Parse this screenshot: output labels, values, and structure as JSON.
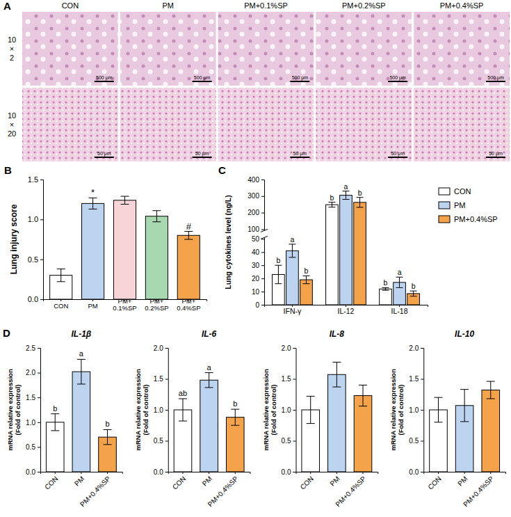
{
  "chart_data": [
    {
      "type": "image_grid",
      "panel": "A",
      "columns": [
        "CON",
        "PM",
        "PM+0.1%SP",
        "PM+0.2%SP",
        "PM+0.4%SP"
      ],
      "rows": [
        "10 × 2",
        "10 × 20"
      ],
      "scale_bars": [
        "500 μm",
        "50 μm"
      ]
    },
    {
      "type": "bar",
      "panel": "B",
      "categories": [
        "CON",
        "PM",
        "PM+0.1%SP",
        "PM+0.2%SP",
        "PM+0.4%SP"
      ],
      "values": [
        0.3,
        1.2,
        1.24,
        1.04,
        0.8
      ],
      "errors": [
        0.08,
        0.07,
        0.05,
        0.07,
        0.05
      ],
      "colors": [
        "#ffffff",
        "#bcd4f0",
        "#f8d3d8",
        "#a8d8b0",
        "#f5a34a"
      ],
      "ylabel": "Lung injury score",
      "ylim": [
        0,
        1.5
      ],
      "yticks": [
        {
          "value": 0,
          "label": "0.0"
        },
        {
          "value": 0.5,
          "label": "0.5"
        },
        {
          "value": 1,
          "label": "1.0"
        },
        {
          "value": 1.5,
          "label": "1.5"
        }
      ],
      "annotations": [
        {
          "category": "PM",
          "text": "*"
        },
        {
          "category": "PM+0.4%SP",
          "text": "#"
        }
      ]
    },
    {
      "type": "grouped_bar",
      "panel": "C",
      "categories": [
        "IFN-γ",
        "IL-12",
        "IL-18"
      ],
      "series": [
        {
          "name": "CON",
          "color": "#ffffff",
          "values": [
            23,
            248,
            12
          ],
          "errors": [
            7,
            15,
            1
          ],
          "letters": [
            "b",
            "b",
            "b"
          ]
        },
        {
          "name": "PM",
          "color": "#bcd4f0",
          "values": [
            41,
            305,
            17
          ],
          "errors": [
            5,
            25,
            4
          ],
          "letters": [
            "a",
            "a",
            "a"
          ]
        },
        {
          "name": "PM+0.4%SP",
          "color": "#f5a34a",
          "values": [
            19,
            262,
            8.5
          ],
          "errors": [
            3,
            30,
            2
          ],
          "letters": [
            "b",
            "b",
            "b"
          ]
        }
      ],
      "ylabel": "Lung cytokines level (ng/L)",
      "ylim": [
        0,
        400
      ],
      "yticks": [
        0,
        10,
        20,
        30,
        40,
        50,
        100,
        200,
        300,
        400
      ],
      "y_break": [
        50,
        100
      ],
      "legend": "right"
    },
    {
      "type": "bar",
      "panel": "D",
      "title": "IL-1β",
      "categories": [
        "CON",
        "PM",
        "PM+0.4%SP"
      ],
      "values": [
        1.0,
        2.02,
        0.7
      ],
      "errors": [
        0.17,
        0.25,
        0.15
      ],
      "letters": [
        "b",
        "a",
        "b"
      ],
      "colors": [
        "#ffffff",
        "#bcd4f0",
        "#f5a34a"
      ],
      "ylabel": "mRNA relative expression (Fold of control)",
      "ylim": [
        0,
        2.5
      ],
      "yticks": [
        {
          "value": 0,
          "label": "0.0"
        },
        {
          "value": 0.5,
          "label": "0.5"
        },
        {
          "value": 1,
          "label": "1.0"
        },
        {
          "value": 1.5,
          "label": "1.5"
        },
        {
          "value": 2,
          "label": "2.0"
        },
        {
          "value": 2.5,
          "label": "2.5"
        }
      ]
    },
    {
      "type": "bar",
      "title": "IL-6",
      "categories": [
        "CON",
        "PM",
        "PM+0.4%SP"
      ],
      "values": [
        1.0,
        1.48,
        0.88
      ],
      "errors": [
        0.18,
        0.12,
        0.13
      ],
      "letters": [
        "ab",
        "a",
        "b"
      ],
      "colors": [
        "#ffffff",
        "#bcd4f0",
        "#f5a34a"
      ],
      "ylabel": "mRNA relative expression (Fold of control)",
      "ylim": [
        0,
        2
      ],
      "yticks": [
        {
          "value": 0,
          "label": "0.0"
        },
        {
          "value": 0.5,
          "label": "0.5"
        },
        {
          "value": 1,
          "label": "1.0"
        },
        {
          "value": 1.5,
          "label": "1.5"
        },
        {
          "value": 2,
          "label": "2.0"
        }
      ]
    },
    {
      "type": "bar",
      "title": "IL-8",
      "categories": [
        "CON",
        "PM",
        "PM+0.4%SP"
      ],
      "values": [
        1.0,
        1.57,
        1.23
      ],
      "errors": [
        0.22,
        0.2,
        0.17
      ],
      "colors": [
        "#ffffff",
        "#bcd4f0",
        "#f5a34a"
      ],
      "ylabel": "mRNA relative expression (Fold of control)",
      "ylim": [
        0,
        2
      ],
      "yticks": [
        {
          "value": 0,
          "label": "0.0"
        },
        {
          "value": 0.5,
          "label": "0.5"
        },
        {
          "value": 1,
          "label": "1.0"
        },
        {
          "value": 1.5,
          "label": "1.5"
        },
        {
          "value": 2,
          "label": "2.0"
        }
      ]
    },
    {
      "type": "bar",
      "title": "IL-10",
      "categories": [
        "CON",
        "PM",
        "PM+0.4%SP"
      ],
      "values": [
        1.0,
        1.07,
        1.32
      ],
      "errors": [
        0.2,
        0.26,
        0.14
      ],
      "colors": [
        "#ffffff",
        "#bcd4f0",
        "#f5a34a"
      ],
      "ylabel": "mRNA relative expression (Fold of control)",
      "ylim": [
        0,
        2
      ],
      "yticks": [
        {
          "value": 0,
          "label": "0.0"
        },
        {
          "value": 0.5,
          "label": "0.5"
        },
        {
          "value": 1,
          "label": "1.0"
        },
        {
          "value": 1.5,
          "label": "1.5"
        },
        {
          "value": 2,
          "label": "2.0"
        }
      ]
    }
  ]
}
